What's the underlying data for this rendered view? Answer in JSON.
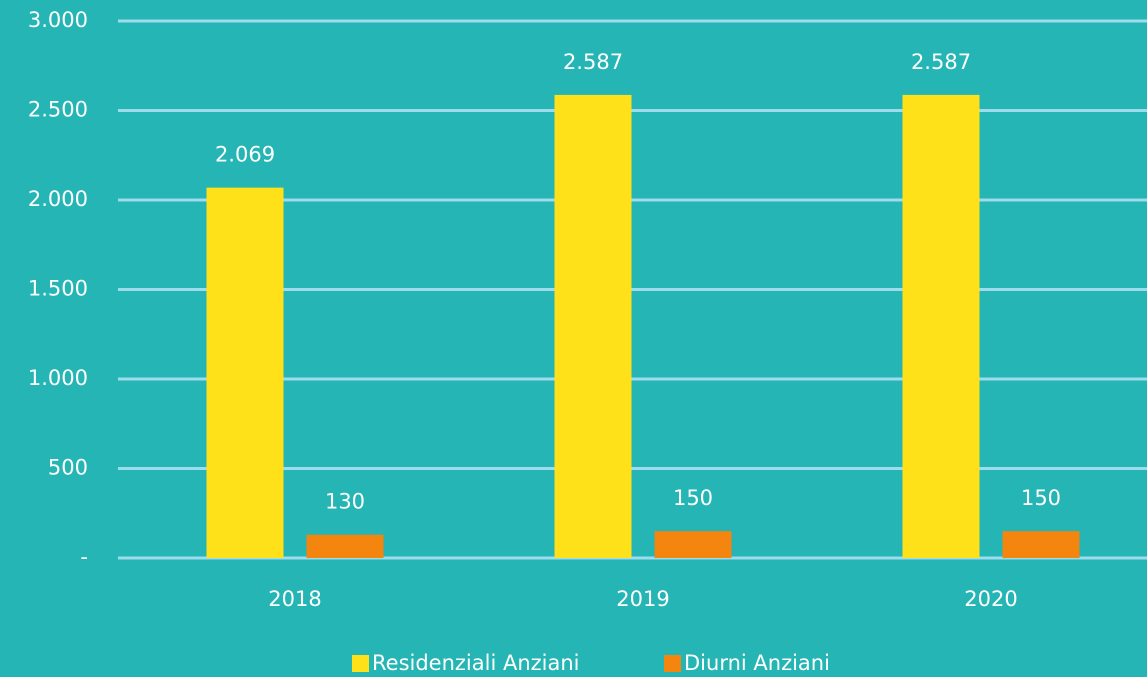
{
  "chart_data": {
    "type": "bar",
    "categories": [
      "2018",
      "2019",
      "2020"
    ],
    "series": [
      {
        "name": "Residenziali Anziani",
        "color": "#ffe11a",
        "values": [
          2069,
          2587,
          2587
        ],
        "value_labels": [
          "2.069",
          "2.587",
          "2.587"
        ]
      },
      {
        "name": "Diurni Anziani",
        "color": "#f4850f",
        "values": [
          130,
          150,
          150
        ]
      }
    ],
    "ylim": [
      0,
      3000
    ],
    "yticks": [
      {
        "value": 0,
        "label": "-"
      },
      500,
      {
        "value": 1000,
        "label": "1.000"
      },
      {
        "value": 1500,
        "label": "1.500"
      },
      {
        "value": 2000,
        "label": "2.000"
      },
      {
        "value": 2500,
        "label": "2.500"
      },
      {
        "value": 3000,
        "label": "3.000"
      }
    ],
    "grid": true,
    "legend": "bottom"
  }
}
